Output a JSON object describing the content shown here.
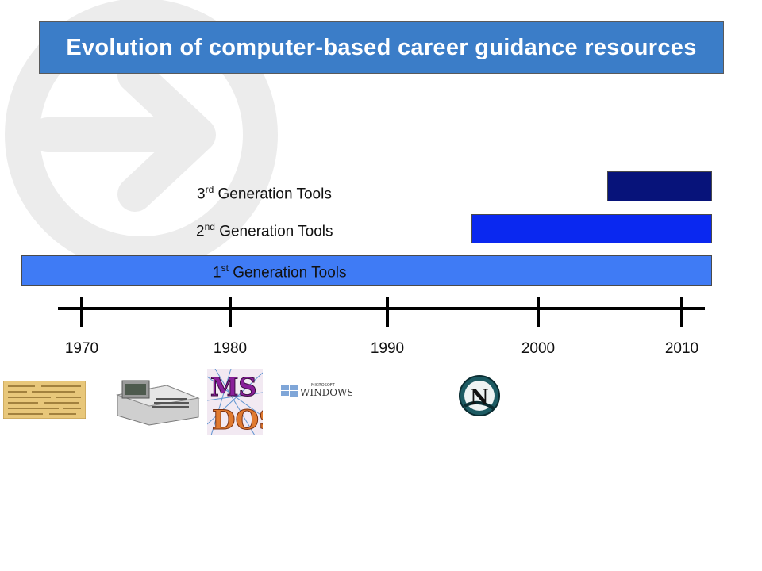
{
  "title": "Evolution of computer-based career guidance resources",
  "colors": {
    "title_bg": "#3b7dc8",
    "gen1": "#3f7bf5",
    "gen2": "#0a28f0",
    "gen3": "#07137a",
    "watermark": "#ececec"
  },
  "generations": [
    {
      "ordinal": "1",
      "suffix": "st",
      "label": " Generation Tools",
      "start_year": 1966,
      "end_year": 2012
    },
    {
      "ordinal": "2",
      "suffix": "nd",
      "label": " Generation Tools",
      "start_year": 1996,
      "end_year": 2012
    },
    {
      "ordinal": "3",
      "suffix": "rd",
      "label": " Generation Tools",
      "start_year": 2005,
      "end_year": 2012
    }
  ],
  "timeline": {
    "years": [
      "1970",
      "1980",
      "1990",
      "2000",
      "2010"
    ]
  },
  "icons": [
    "punch-card-icon",
    "mainframe-terminal-icon",
    "ms-dos-logo-icon",
    "microsoft-windows-logo-icon",
    "netscape-navigator-logo-icon"
  ],
  "logos": {
    "ms_dos": "MS DOS",
    "windows_small": "MICROSOFT",
    "windows_big": "WINDOWS",
    "netscape": "N"
  }
}
